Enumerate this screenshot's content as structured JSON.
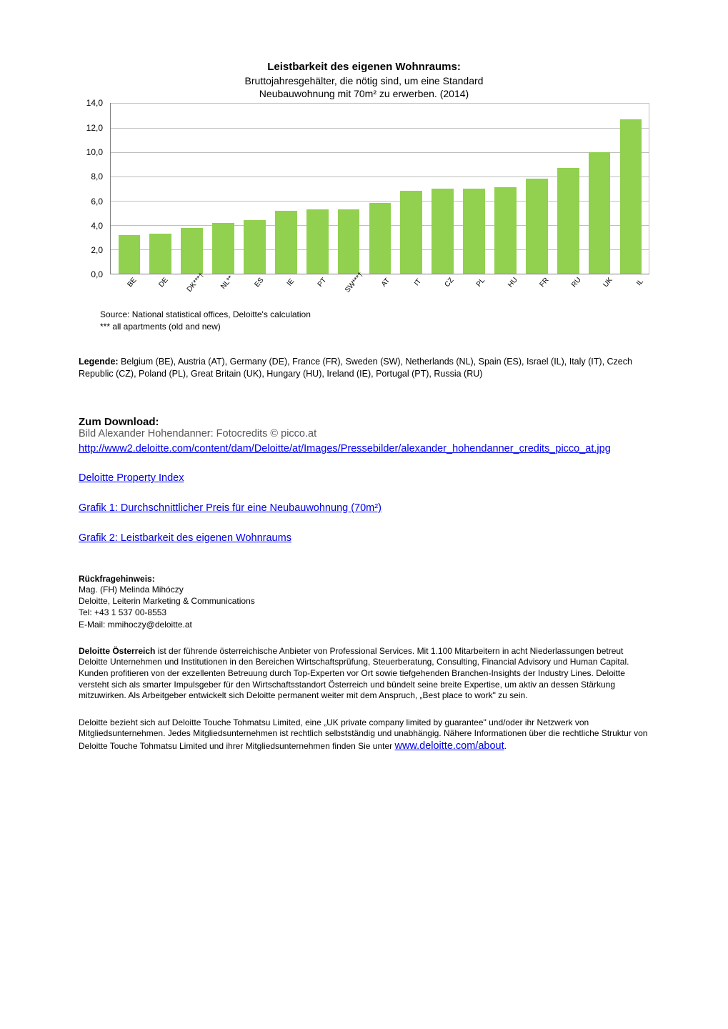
{
  "chart": {
    "type": "bar",
    "title": "Leistbarkeit des eigenen Wohnraums:",
    "subtitle_line1": "Bruttojahresgehälter, die nötig sind, um eine Standard",
    "subtitle_line2": "Neubauwohnung mit 70m² zu erwerben. (2014)",
    "categories": [
      "BE",
      "DE",
      "DK***†",
      "NL**",
      "ES",
      "IE",
      "PT",
      "SW***†",
      "AT",
      "IT",
      "CZ",
      "PL",
      "HU",
      "FR",
      "RU",
      "UK",
      "IL"
    ],
    "values": [
      3.2,
      3.3,
      3.8,
      4.2,
      4.4,
      5.2,
      5.3,
      5.3,
      5.8,
      6.8,
      7.0,
      7.0,
      7.1,
      7.8,
      8.7,
      10.0,
      12.7
    ],
    "bar_color": "#92d050",
    "ylim": [
      0,
      14
    ],
    "ytick_step": 2,
    "y_ticks": [
      "0,0",
      "2,0",
      "4,0",
      "6,0",
      "8,0",
      "10,0",
      "12,0",
      "14,0"
    ],
    "grid_color": "#bfbfbf",
    "axis_color": "#808080",
    "background_color": "#ffffff",
    "bar_width": 0.7,
    "title_fontsize": 15,
    "subtitle_fontsize": 14,
    "tick_fontsize": 12,
    "xlabel_fontsize": 10,
    "xlabel_rotation_deg": -50
  },
  "source": {
    "line1": "Source: National statistical offices, Deloitte's calculation",
    "line2": "*** all apartments (old and new)"
  },
  "legende": {
    "label": "Legende:",
    "text": " Belgium (BE), Austria (AT), Germany (DE), France (FR), Sweden (SW), Netherlands (NL), Spain (ES), Israel (IL), Italy (IT), Czech Republic (CZ), Poland (PL), Great Britain (UK), Hungary (HU), Ireland (IE), Portugal (PT), Russia (RU)"
  },
  "download": {
    "heading": "Zum Download:",
    "credits": "Bild Alexander Hohendanner: Fotocredits © picco.at",
    "link1": "http://www2.deloitte.com/content/dam/Deloitte/at/Images/Pressebilder/alexander_hohendanner_credits_picco_at.jpg",
    "link2": "Deloitte Property Index",
    "link3": "Grafik 1: Durchschnittlicher Preis für eine Neubauwohnung (70m²)",
    "link4": "Grafik 2: Leistbarkeit des eigenen Wohnraums"
  },
  "contact": {
    "heading": "Rückfragehinweis:",
    "name": "Mag. (FH) Melinda Mihóczy",
    "role": "Deloitte, Leiterin Marketing & Communications",
    "tel": "Tel: +43 1 537 00-8553",
    "email": "E-Mail: mmihoczy@deloitte.at"
  },
  "about": {
    "bold": "Deloitte Österreich",
    "text": " ist der führende österreichische Anbieter von Professional Services. Mit 1.100 Mitarbeitern in acht Niederlassungen betreut Deloitte Unternehmen und Institutionen in den Bereichen Wirtschaftsprüfung, Steuerberatung, Consulting, Financial Advisory und Human Capital. Kunden profitieren von der exzellenten Betreuung durch Top-Experten vor Ort sowie tiefgehenden Branchen-Insights der Industry Lines. Deloitte versteht sich als smarter Impulsgeber für den Wirtschaftsstandort Österreich und bündelt seine breite Expertise, um aktiv an dessen Stärkung mitzuwirken. Als Arbeitgeber entwickelt sich Deloitte permanent weiter mit dem Anspruch, „Best place to work\" zu sein."
  },
  "about2": {
    "text_before": "Deloitte bezieht sich auf Deloitte Touche Tohmatsu Limited, eine „UK private company limited by guarantee\" und/oder ihr Netzwerk von Mitgliedsunternehmen. Jedes Mitgliedsunternehmen ist rechtlich selbstständig und unabhängig. Nähere Informationen über die rechtliche Struktur von Deloitte Touche Tohmatsu Limited und ihrer Mitgliedsunternehmen finden Sie unter ",
    "link_text": "www.deloitte.com/about",
    "text_after": "."
  }
}
